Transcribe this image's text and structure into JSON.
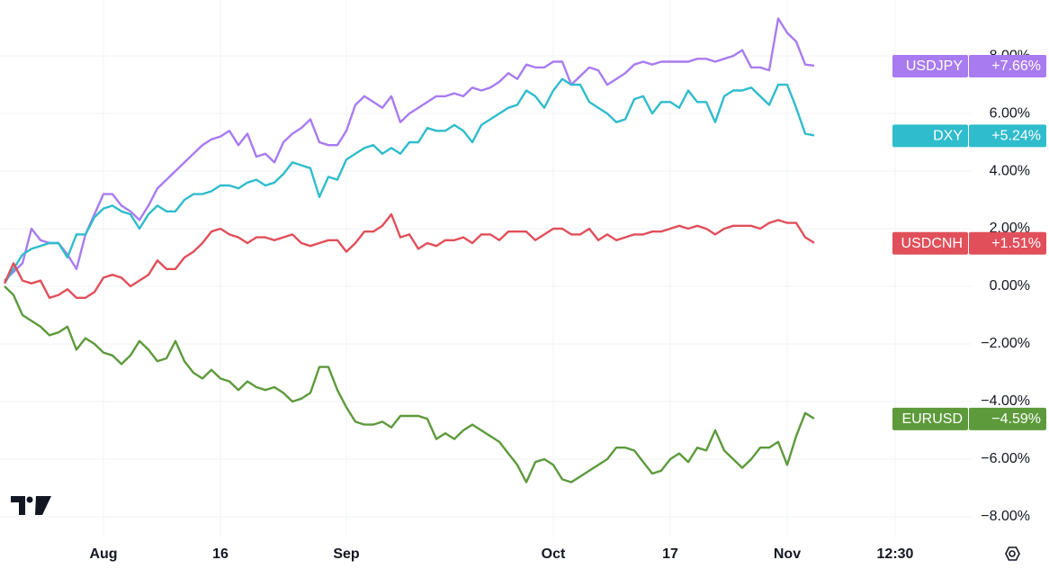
{
  "chart_data": {
    "type": "line",
    "categories": [
      null,
      null,
      null,
      null,
      null,
      null,
      null,
      null,
      null,
      null,
      null,
      "Aug",
      null,
      null,
      null,
      null,
      null,
      null,
      null,
      null,
      null,
      null,
      null,
      null,
      "16",
      null,
      null,
      null,
      null,
      null,
      null,
      null,
      null,
      null,
      null,
      null,
      null,
      null,
      "Sep",
      null,
      null,
      null,
      null,
      null,
      null,
      null,
      null,
      null,
      null,
      null,
      null,
      null,
      null,
      null,
      null,
      null,
      null,
      null,
      null,
      null,
      null,
      "Oct",
      null,
      null,
      null,
      null,
      null,
      null,
      null,
      null,
      null,
      null,
      null,
      null,
      "17",
      null,
      null,
      null,
      null,
      null,
      null,
      null,
      null,
      null,
      null,
      null,
      null,
      "Nov",
      null,
      null,
      null,
      null,
      null,
      null,
      null,
      null,
      null,
      null,
      null,
      "12:30",
      null,
      null,
      null,
      null,
      null,
      null,
      null,
      null
    ],
    "series": [
      {
        "name": "USDJPY",
        "color": "#a87bf0",
        "last_label": "+7.66%",
        "values": [
          0.2,
          0.5,
          0.8,
          2.0,
          1.6,
          1.5,
          1.5,
          1.1,
          0.6,
          1.8,
          2.5,
          3.2,
          3.2,
          2.8,
          2.6,
          2.3,
          2.8,
          3.4,
          3.7,
          4.0,
          4.3,
          4.6,
          4.9,
          5.1,
          5.2,
          5.4,
          4.9,
          5.3,
          4.5,
          4.6,
          4.3,
          5.0,
          5.3,
          5.5,
          5.8,
          5.0,
          4.9,
          4.9,
          5.4,
          6.3,
          6.6,
          6.4,
          6.2,
          6.6,
          5.7,
          6.0,
          6.2,
          6.4,
          6.6,
          6.6,
          6.7,
          6.6,
          6.9,
          6.8,
          6.9,
          7.1,
          7.4,
          7.2,
          7.7,
          7.6,
          7.6,
          7.8,
          7.8,
          7.0,
          7.3,
          7.6,
          7.5,
          7.0,
          7.2,
          7.4,
          7.7,
          7.8,
          7.7,
          7.8,
          7.8,
          7.8,
          7.8,
          7.9,
          7.9,
          7.8,
          7.9,
          8.0,
          8.2,
          7.6,
          7.6,
          7.5,
          9.3,
          8.8,
          8.5,
          7.7,
          7.66,
          null,
          null,
          null,
          null,
          null,
          null,
          null,
          null,
          null,
          null,
          null,
          null,
          null,
          null,
          null,
          null,
          null
        ]
      },
      {
        "name": "DXY",
        "color": "#2fbccc",
        "last_label": "+5.24%",
        "values": [
          0.1,
          0.6,
          1.1,
          1.3,
          1.4,
          1.5,
          1.5,
          1.0,
          1.8,
          1.8,
          2.4,
          2.7,
          2.8,
          2.6,
          2.5,
          2.0,
          2.5,
          2.8,
          2.6,
          2.6,
          3.0,
          3.2,
          3.2,
          3.3,
          3.5,
          3.5,
          3.4,
          3.6,
          3.7,
          3.5,
          3.6,
          3.9,
          4.3,
          4.2,
          4.1,
          3.1,
          3.8,
          3.7,
          4.4,
          4.6,
          4.8,
          4.9,
          4.6,
          4.8,
          4.6,
          5.0,
          5.0,
          5.5,
          5.4,
          5.4,
          5.6,
          5.4,
          5.0,
          5.6,
          5.8,
          6.0,
          6.2,
          6.3,
          6.8,
          6.6,
          6.2,
          6.8,
          7.2,
          7.0,
          7.0,
          6.4,
          6.2,
          6.0,
          5.7,
          5.8,
          6.5,
          6.6,
          6.0,
          6.4,
          6.4,
          6.2,
          6.8,
          6.4,
          6.4,
          5.7,
          6.6,
          6.8,
          6.8,
          6.9,
          6.6,
          6.3,
          7.0,
          7.0,
          6.2,
          5.3,
          5.24,
          null,
          null,
          null,
          null,
          null,
          null,
          null,
          null,
          null,
          null,
          null,
          null,
          null,
          null,
          null,
          null,
          null
        ]
      },
      {
        "name": "USDCNH",
        "color": "#e04f5a",
        "last_label": "+1.51%",
        "values": [
          0.1,
          0.8,
          0.2,
          0.1,
          0.2,
          -0.4,
          -0.3,
          -0.1,
          -0.4,
          -0.4,
          -0.2,
          0.3,
          0.4,
          0.3,
          0.0,
          0.2,
          0.4,
          0.9,
          0.6,
          0.6,
          1.0,
          1.2,
          1.5,
          1.9,
          2.0,
          1.8,
          1.7,
          1.5,
          1.7,
          1.7,
          1.6,
          1.7,
          1.8,
          1.5,
          1.4,
          1.5,
          1.6,
          1.6,
          1.2,
          1.5,
          1.9,
          1.9,
          2.1,
          2.5,
          1.7,
          1.8,
          1.3,
          1.5,
          1.4,
          1.6,
          1.6,
          1.7,
          1.5,
          1.8,
          1.8,
          1.6,
          1.9,
          1.9,
          1.9,
          1.6,
          1.8,
          2.0,
          2.0,
          1.8,
          1.8,
          2.0,
          1.6,
          1.8,
          1.6,
          1.7,
          1.8,
          1.8,
          1.9,
          1.9,
          2.0,
          2.1,
          2.0,
          2.1,
          2.0,
          1.8,
          2.0,
          2.1,
          2.1,
          2.1,
          2.0,
          2.2,
          2.3,
          2.2,
          2.2,
          1.7,
          1.51,
          null,
          null,
          null,
          null,
          null,
          null,
          null,
          null,
          null,
          null,
          null,
          null,
          null,
          null,
          null,
          null,
          null
        ]
      },
      {
        "name": "EURUSD",
        "color": "#5d9a3b",
        "last_label": "−4.59%",
        "values": [
          0.0,
          -0.3,
          -1.0,
          -1.2,
          -1.4,
          -1.7,
          -1.6,
          -1.4,
          -2.2,
          -1.8,
          -2.0,
          -2.3,
          -2.4,
          -2.7,
          -2.4,
          -1.9,
          -2.2,
          -2.6,
          -2.5,
          -1.9,
          -2.6,
          -3.0,
          -3.2,
          -2.9,
          -3.2,
          -3.3,
          -3.6,
          -3.3,
          -3.5,
          -3.6,
          -3.5,
          -3.7,
          -4.0,
          -3.9,
          -3.7,
          -2.8,
          -2.8,
          -3.6,
          -4.2,
          -4.7,
          -4.8,
          -4.8,
          -4.7,
          -4.9,
          -4.5,
          -4.5,
          -4.5,
          -4.6,
          -5.3,
          -5.1,
          -5.3,
          -5.0,
          -4.8,
          -5.0,
          -5.2,
          -5.4,
          -5.8,
          -6.2,
          -6.8,
          -6.1,
          -6.0,
          -6.2,
          -6.7,
          -6.8,
          -6.6,
          -6.4,
          -6.2,
          -6.0,
          -5.6,
          -5.6,
          -5.7,
          -6.1,
          -6.5,
          -6.4,
          -6.0,
          -5.8,
          -6.1,
          -5.6,
          -5.7,
          -5.0,
          -5.7,
          -6.0,
          -6.3,
          -6.0,
          -5.6,
          -5.6,
          -5.4,
          -6.2,
          -5.2,
          -4.4,
          -4.59,
          null,
          null,
          null,
          null,
          null,
          null,
          null,
          null,
          null,
          null,
          null,
          null,
          null,
          null,
          null,
          null,
          null
        ]
      }
    ],
    "ylim": [
      -8.72,
      9.94
    ],
    "yticks": [
      {
        "value": -8,
        "label": "−8.00%"
      },
      {
        "value": -6,
        "label": "−6.00%"
      },
      {
        "value": -4,
        "label": "−4.00%"
      },
      {
        "value": -2,
        "label": "−2.00%"
      },
      {
        "value": 0,
        "label": "0.00%"
      },
      {
        "value": 2,
        "label": "2.00%"
      },
      {
        "value": 4,
        "label": "4.00%"
      },
      {
        "value": 6,
        "label": "6.00%"
      },
      {
        "value": 8,
        "label": "8.00%"
      }
    ],
    "grid": true
  }
}
